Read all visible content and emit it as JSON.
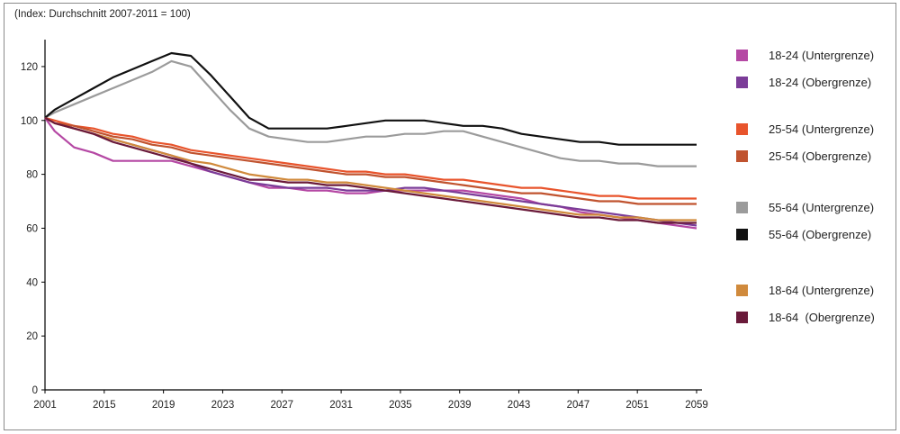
{
  "chart_data": {
    "type": "line",
    "subtitle": "(Index: Durchschnitt 2007-2011 = 100)",
    "xlabel": "",
    "ylabel": "",
    "x": [
      2001,
      2002,
      2004,
      2006,
      2008,
      2010,
      2012,
      2014,
      2016,
      2018,
      2020,
      2022,
      2024,
      2026,
      2028,
      2030,
      2032,
      2034,
      2036,
      2038,
      2040,
      2042,
      2044,
      2046,
      2048,
      2050,
      2052,
      2054,
      2056,
      2058,
      2060,
      2062,
      2064,
      2066,
      2068
    ],
    "x_tick_labels": [
      "2001",
      "2015",
      "2019",
      "2023",
      "2027",
      "2031",
      "2035",
      "2039",
      "2043",
      "2047",
      "2051",
      "2059"
    ],
    "ylim": [
      0,
      130
    ],
    "y_ticks": [
      0,
      20,
      40,
      60,
      80,
      100,
      120
    ],
    "grid": false,
    "legend_position": "right",
    "series": [
      {
        "name": "18-24 (Untergrenze)",
        "color": "#b548a4",
        "values": [
          101,
          96,
          90,
          88,
          85,
          85,
          85,
          85,
          83,
          81,
          79,
          77,
          75,
          75,
          74,
          74,
          73,
          73,
          74,
          74,
          74,
          74,
          74,
          73,
          72,
          71,
          69,
          68,
          66,
          65,
          64,
          63,
          62,
          61,
          60
        ]
      },
      {
        "name": "18-24 (Obergrenze)",
        "color": "#7b3c98",
        "values": [
          101,
          99,
          97,
          95,
          93,
          91,
          89,
          87,
          84,
          81,
          79,
          77,
          76,
          75,
          75,
          75,
          74,
          74,
          74,
          75,
          75,
          74,
          73,
          72,
          71,
          70,
          69,
          68,
          67,
          66,
          65,
          64,
          63,
          62,
          61
        ]
      },
      {
        "name": "25-54 (Untergrenze)",
        "color": "#e8542c",
        "values": [
          101,
          100,
          98,
          97,
          95,
          94,
          92,
          91,
          89,
          88,
          87,
          86,
          85,
          84,
          83,
          82,
          81,
          81,
          80,
          80,
          79,
          78,
          78,
          77,
          76,
          75,
          75,
          74,
          73,
          72,
          72,
          71,
          71,
          71,
          71
        ]
      },
      {
        "name": "25-54 (Obergrenze)",
        "color": "#c0532f",
        "values": [
          101,
          99,
          98,
          96,
          94,
          93,
          91,
          90,
          88,
          87,
          86,
          85,
          84,
          83,
          82,
          81,
          80,
          80,
          79,
          79,
          78,
          77,
          76,
          75,
          74,
          73,
          73,
          72,
          71,
          70,
          70,
          69,
          69,
          69,
          69
        ]
      },
      {
        "name": "55-64 (Untergrenze)",
        "color": "#9b9b9b",
        "values": [
          101,
          103,
          106,
          109,
          112,
          115,
          118,
          122,
          120,
          112,
          104,
          97,
          94,
          93,
          92,
          92,
          93,
          94,
          94,
          95,
          95,
          96,
          96,
          94,
          92,
          90,
          88,
          86,
          85,
          85,
          84,
          84,
          83,
          83,
          83
        ]
      },
      {
        "name": "55-64 (Obergrenze)",
        "color": "#111111",
        "values": [
          101,
          104,
          108,
          112,
          116,
          119,
          122,
          125,
          124,
          117,
          109,
          101,
          97,
          97,
          97,
          97,
          98,
          99,
          100,
          100,
          100,
          99,
          98,
          98,
          97,
          95,
          94,
          93,
          92,
          92,
          91,
          91,
          91,
          91,
          91
        ]
      },
      {
        "name": "18-64 (Untergrenze)",
        "color": "#d08a3c",
        "values": [
          101,
          99,
          97,
          95,
          93,
          91,
          89,
          87,
          85,
          84,
          82,
          80,
          79,
          78,
          78,
          77,
          77,
          76,
          75,
          74,
          73,
          72,
          71,
          70,
          69,
          68,
          67,
          66,
          65,
          65,
          64,
          64,
          63,
          63,
          63
        ]
      },
      {
        "name": "18-64  (Obergrenze)",
        "color": "#6a1a3a",
        "values": [
          101,
          99,
          97,
          95,
          92,
          90,
          88,
          86,
          84,
          82,
          80,
          78,
          78,
          77,
          77,
          76,
          76,
          75,
          74,
          73,
          72,
          71,
          70,
          69,
          68,
          67,
          66,
          65,
          64,
          64,
          63,
          63,
          62,
          62,
          62
        ]
      }
    ]
  }
}
